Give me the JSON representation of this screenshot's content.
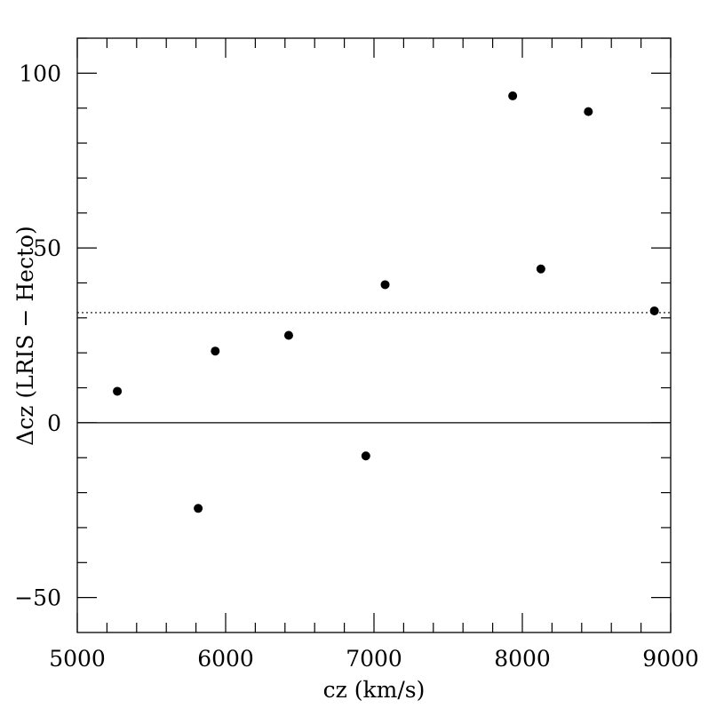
{
  "chart_data": {
    "type": "scatter",
    "title": "",
    "xlabel": "cz (km/s)",
    "ylabel": "Δcz (LRIS − Hecto)",
    "xlim": [
      5000,
      9000
    ],
    "ylim": [
      -60,
      110
    ],
    "x_ticks": [
      5000,
      6000,
      7000,
      8000,
      9000
    ],
    "x_tick_labels": [
      "5000",
      "6000",
      "7000",
      "8000",
      "9000"
    ],
    "y_ticks": [
      -50,
      0,
      50,
      100
    ],
    "y_tick_labels": [
      "−50",
      "0",
      "50",
      "100"
    ],
    "grid": false,
    "reference_lines": [
      {
        "y": 0,
        "style": "solid"
      },
      {
        "y": 31.5,
        "style": "dotted"
      }
    ],
    "series": [
      {
        "points": [
          {
            "x": 5270,
            "y": 9
          },
          {
            "x": 5815,
            "y": -24.5
          },
          {
            "x": 5930,
            "y": 20.5
          },
          {
            "x": 6425,
            "y": 25
          },
          {
            "x": 6945,
            "y": -9.5
          },
          {
            "x": 7075,
            "y": 39.5
          },
          {
            "x": 7935,
            "y": 93.5
          },
          {
            "x": 8125,
            "y": 44
          },
          {
            "x": 8445,
            "y": 89
          },
          {
            "x": 8890,
            "y": 32
          }
        ]
      }
    ]
  }
}
